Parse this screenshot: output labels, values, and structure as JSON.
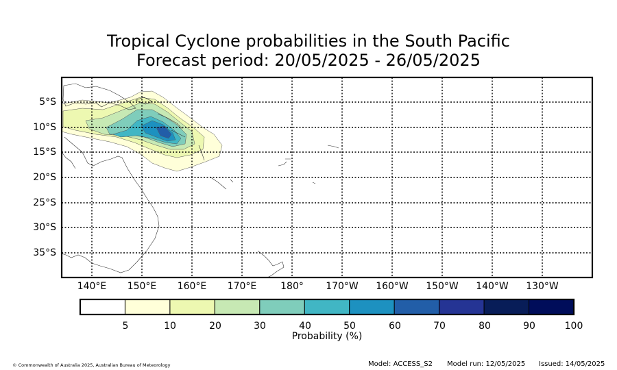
{
  "title_line1": "Tropical Cyclone probabilities in the South Pacific",
  "title_line2": "Forecast period: 20/05/2025 - 26/05/2025",
  "map": {
    "lon_labels": [
      "140°E",
      "150°E",
      "160°E",
      "170°E",
      "180°",
      "170°W",
      "160°W",
      "150°W",
      "140°W",
      "130°W"
    ],
    "lat_labels": [
      "5°S",
      "10°S",
      "15°S",
      "20°S",
      "25°S",
      "30°S",
      "35°S"
    ],
    "lon_range": [
      134,
      240
    ],
    "lat_range": [
      -40,
      1
    ],
    "gridlines": "dotted",
    "probability_peak_region": "Solomon Sea / Solomon Islands, approx 10-12°S 152-158°E"
  },
  "colorbar": {
    "ticks": [
      "5",
      "10",
      "20",
      "30",
      "40",
      "50",
      "60",
      "70",
      "80",
      "90",
      "100"
    ],
    "label": "Probability (%)",
    "colors": [
      "#ffffff",
      "#ffffd9",
      "#edf8b1",
      "#c7e9b4",
      "#7fcdbb",
      "#41b6c4",
      "#1d91c0",
      "#225ea8",
      "#253494",
      "#081d58",
      "#000d5a"
    ]
  },
  "footer": {
    "copyright": "© Commonwealth of Australia 2025, Australian Bureau of Meteorology",
    "model": "Model: ACCESS_S2",
    "model_run": "Model run: 12/05/2025",
    "issued": "Issued: 14/05/2025"
  }
}
